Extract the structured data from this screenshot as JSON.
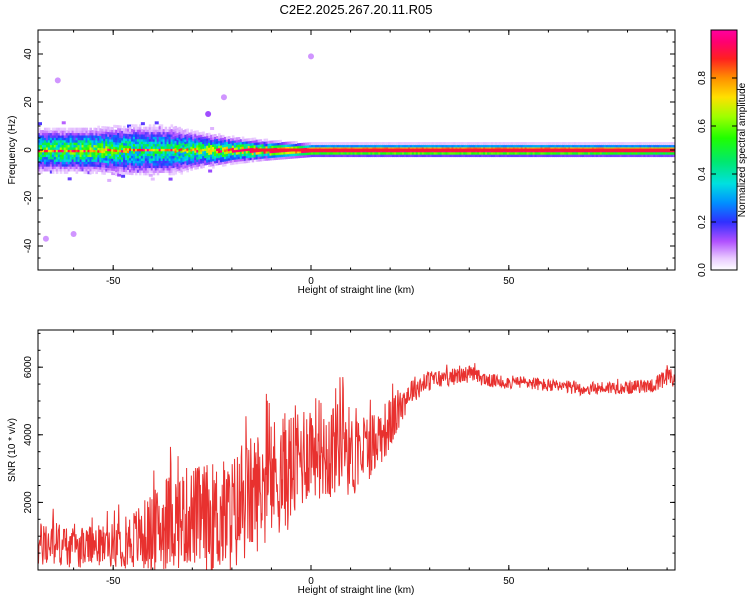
{
  "title": "C2E2.2025.267.20.11.R05",
  "chart_data": [
    {
      "type": "heatmap",
      "xlabel": "Height of straight line (km)",
      "ylabel": "Frequency (Hz)",
      "xlim": [
        -69,
        92
      ],
      "ylim": [
        -50,
        50
      ],
      "xticks": [
        -50,
        0,
        50
      ],
      "yticks": [
        -40,
        -20,
        0,
        20,
        40
      ],
      "xtick_labels": [
        "-50",
        "0",
        "50"
      ],
      "ytick_labels": [
        "-40",
        "-20",
        "0",
        "20",
        "40"
      ],
      "colorbar": {
        "label": "Normalized spectral amplitude",
        "range": [
          0,
          1
        ],
        "ticks": [
          0.0,
          0.2,
          0.4,
          0.6,
          0.8
        ],
        "tick_labels": [
          "0.0",
          "0.2",
          "0.4",
          "0.6",
          "0.8"
        ]
      },
      "ridge": {
        "description_x_start": -69,
        "x_end": 92,
        "frequency": 0,
        "max_amplitude": 1.0
      },
      "spread_profile": [
        {
          "x": -69,
          "spread_hz": 7,
          "peak": 0.55
        },
        {
          "x": -55,
          "spread_hz": 7,
          "peak": 0.6
        },
        {
          "x": -45,
          "spread_hz": 8,
          "peak": 0.5
        },
        {
          "x": -35,
          "spread_hz": 8,
          "peak": 0.45
        },
        {
          "x": -30,
          "spread_hz": 6,
          "peak": 0.55
        },
        {
          "x": -20,
          "spread_hz": 4,
          "peak": 0.7
        },
        {
          "x": -12,
          "spread_hz": 3,
          "peak": 0.85
        },
        {
          "x": 0,
          "spread_hz": 2,
          "peak": 0.95
        },
        {
          "x": 20,
          "spread_hz": 2,
          "peak": 1.0
        },
        {
          "x": 60,
          "spread_hz": 2,
          "peak": 1.0
        },
        {
          "x": 92,
          "spread_hz": 2,
          "peak": 0.9
        }
      ],
      "isolated_points": [
        {
          "x": 0,
          "y": 39,
          "amplitude": 0.05
        },
        {
          "x": -64,
          "y": 29,
          "amplitude": 0.05
        },
        {
          "x": -67,
          "y": -37,
          "amplitude": 0.05
        },
        {
          "x": -60,
          "y": -35,
          "amplitude": 0.05
        },
        {
          "x": -22,
          "y": 22,
          "amplitude": 0.05
        },
        {
          "x": -26,
          "y": 15,
          "amplitude": 0.1
        }
      ]
    },
    {
      "type": "line",
      "xlabel": "Height of straight line (km)",
      "ylabel": "SNR (10 * v/v)",
      "xlim": [
        -69,
        92
      ],
      "ylim": [
        0,
        7100
      ],
      "xticks": [
        -50,
        0,
        50
      ],
      "yticks": [
        2000,
        4000,
        6000
      ],
      "xtick_labels": [
        "-50",
        "0",
        "50"
      ],
      "ytick_labels": [
        "2000",
        "4000",
        "6000"
      ],
      "series": [
        {
          "name": "SNR",
          "color": "#e8312f",
          "x": [
            -69,
            -65,
            -60,
            -55,
            -50,
            -45,
            -40,
            -35,
            -30,
            -25,
            -20,
            -15,
            -10,
            -5,
            0,
            5,
            8,
            10,
            15,
            20,
            25,
            30,
            35,
            40,
            45,
            50,
            55,
            60,
            65,
            70,
            75,
            80,
            85,
            88,
            90,
            92
          ],
          "y": [
            700,
            800,
            650,
            700,
            750,
            900,
            1100,
            1500,
            1600,
            1500,
            1600,
            2200,
            2700,
            3000,
            3700,
            3500,
            4300,
            3300,
            3700,
            4300,
            5300,
            5600,
            5700,
            5800,
            5600,
            5550,
            5550,
            5450,
            5400,
            5350,
            5400,
            5400,
            5450,
            5500,
            5700,
            5600
          ],
          "noise_amplitude": [
            700,
            700,
            600,
            600,
            650,
            900,
            1200,
            1500,
            1500,
            1700,
            1800,
            1800,
            1800,
            1800,
            1500,
            1500,
            1800,
            1300,
            1000,
            800,
            400,
            300,
            250,
            250,
            200,
            200,
            200,
            200,
            200,
            200,
            200,
            200,
            200,
            300,
            300,
            250
          ]
        }
      ]
    }
  ]
}
